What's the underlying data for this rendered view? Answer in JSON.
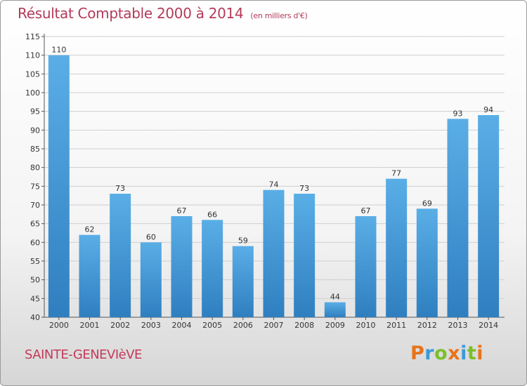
{
  "chart_data": {
    "type": "bar",
    "title": "Résultat Comptable 2000 à 2014",
    "subtitle": "(en milliers d'€)",
    "categories": [
      "2000",
      "2001",
      "2002",
      "2003",
      "2004",
      "2005",
      "2006",
      "2007",
      "2008",
      "2009",
      "2010",
      "2011",
      "2012",
      "2013",
      "2014"
    ],
    "values": [
      110,
      62,
      73,
      60,
      67,
      66,
      59,
      74,
      73,
      44,
      67,
      77,
      69,
      93,
      94
    ],
    "ylim": [
      40,
      115
    ],
    "yticks": [
      40,
      45,
      50,
      55,
      60,
      65,
      70,
      75,
      80,
      85,
      90,
      95,
      100,
      105,
      110,
      115
    ],
    "grid": true,
    "colors": {
      "bar_light": "#5aaee6",
      "bar_dark": "#2f7fc0",
      "grid": "#cfcfcf"
    }
  },
  "town": "SAINTE-GENEVIèVE",
  "brand": {
    "letters": [
      "P",
      "r",
      "o",
      "x",
      "i",
      "t",
      "i"
    ],
    "colors": [
      "#e8731a",
      "#3a9ad9",
      "#7bbf2a",
      "#e8731a",
      "#3a9ad9",
      "#7bbf2a",
      "#e8731a"
    ]
  }
}
